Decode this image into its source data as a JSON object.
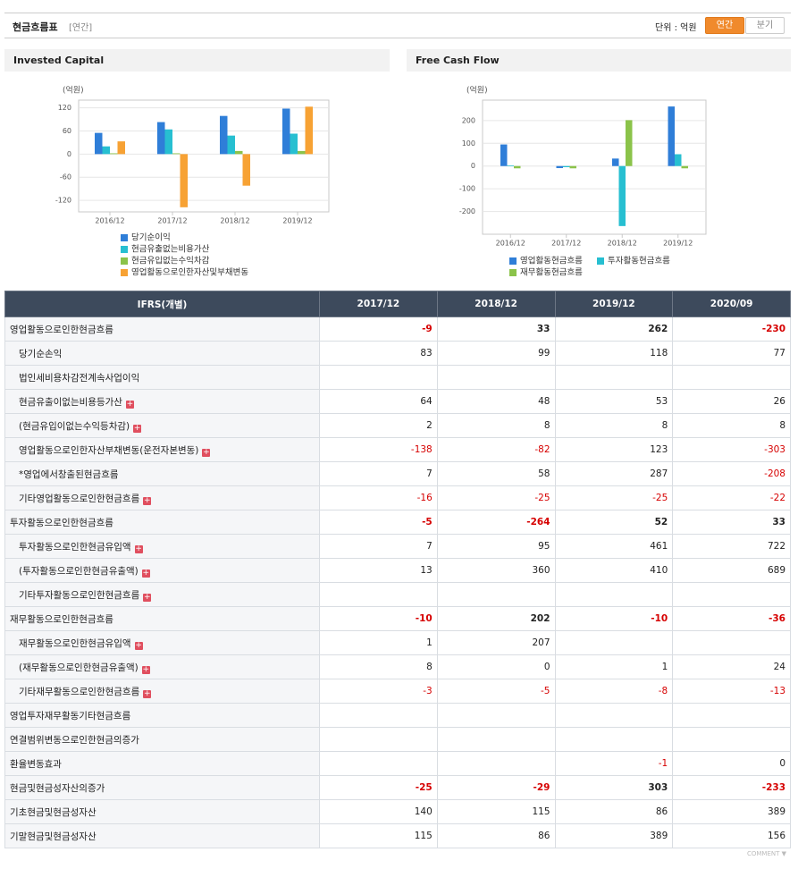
{
  "header": {
    "title": "현금흐름표",
    "period": "[연간]",
    "unit": "단위 : 억원",
    "tabs": [
      "연간",
      "분기"
    ],
    "active_tab": 0
  },
  "chart_data": [
    {
      "type": "bar",
      "title": "Invested Capital",
      "unit_label": "(억원)",
      "categories": [
        "2016/12",
        "2017/12",
        "2018/12",
        "2019/12"
      ],
      "series": [
        {
          "name": "당기순이익",
          "color": "#2f7ed8",
          "values": [
            55,
            83,
            99,
            118
          ]
        },
        {
          "name": "현금유출없는비용가산",
          "color": "#27bfd1",
          "values": [
            20,
            64,
            48,
            53
          ]
        },
        {
          "name": "현금유입없는수익차감",
          "color": "#8bc34a",
          "values": [
            2,
            2,
            8,
            8
          ]
        },
        {
          "name": "영업활동으로인한자산및부채변동",
          "color": "#f7a234",
          "values": [
            33,
            -138,
            -82,
            123
          ]
        }
      ],
      "ylim": [
        -150,
        140
      ],
      "yticks": [
        120,
        60,
        0,
        -60,
        -120
      ],
      "grid": true
    },
    {
      "type": "bar",
      "title": "Free Cash Flow",
      "unit_label": "(억원)",
      "categories": [
        "2016/12",
        "2017/12",
        "2018/12",
        "2019/12"
      ],
      "series": [
        {
          "name": "영업활동현금흐름",
          "color": "#2f7ed8",
          "values": [
            95,
            -9,
            33,
            262
          ]
        },
        {
          "name": "투자활동현금흐름",
          "color": "#27bfd1",
          "values": [
            3,
            -5,
            -264,
            52
          ]
        },
        {
          "name": "재무활동현금흐름",
          "color": "#8bc34a",
          "values": [
            -10,
            -10,
            202,
            -10
          ]
        }
      ],
      "ylim": [
        -300,
        290
      ],
      "yticks": [
        200,
        100,
        0,
        -100,
        -200
      ],
      "grid": true
    }
  ],
  "table": {
    "columns": [
      "IFRS(개별)",
      "2017/12",
      "2018/12",
      "2019/12",
      "2020/09"
    ],
    "rows": [
      {
        "label": "영업활동으로인한현금흐름",
        "values": [
          -9,
          33,
          262,
          -230
        ],
        "emphasis": true
      },
      {
        "label": "당기순손익",
        "values": [
          83,
          99,
          118,
          77
        ],
        "indent": true
      },
      {
        "label": "법인세비용차감전계속사업이익",
        "values": [
          null,
          null,
          null,
          null
        ],
        "indent": true
      },
      {
        "label": "현금유출이없는비용등가산",
        "values": [
          64,
          48,
          53,
          26
        ],
        "indent": true,
        "expand": true
      },
      {
        "label": "(현금유입이없는수익등차감)",
        "values": [
          2,
          8,
          8,
          8
        ],
        "indent": true,
        "expand": true
      },
      {
        "label": "영업활동으로인한자산부채변동(운전자본변동)",
        "values": [
          -138,
          -82,
          123,
          -303
        ],
        "indent": true,
        "expand": true
      },
      {
        "label": "*영업에서창출된현금흐름",
        "values": [
          7,
          58,
          287,
          -208
        ],
        "indent": true
      },
      {
        "label": "기타영업활동으로인한현금흐름",
        "values": [
          -16,
          -25,
          -25,
          -22
        ],
        "indent": true,
        "expand": true
      },
      {
        "label": "투자활동으로인한현금흐름",
        "values": [
          -5,
          -264,
          52,
          33
        ],
        "emphasis": true
      },
      {
        "label": "투자활동으로인한현금유입액",
        "values": [
          7,
          95,
          461,
          722
        ],
        "indent": true,
        "expand": true
      },
      {
        "label": "(투자활동으로인한현금유출액)",
        "values": [
          13,
          360,
          410,
          689
        ],
        "indent": true,
        "expand": true
      },
      {
        "label": "기타투자활동으로인한현금흐름",
        "values": [
          null,
          null,
          null,
          null
        ],
        "indent": true,
        "expand": true
      },
      {
        "label": "재무활동으로인한현금흐름",
        "values": [
          -10,
          202,
          -10,
          -36
        ],
        "emphasis": true
      },
      {
        "label": "재무활동으로인한현금유입액",
        "values": [
          1,
          207,
          null,
          null
        ],
        "indent": true,
        "expand": true
      },
      {
        "label": "(재무활동으로인한현금유출액)",
        "values": [
          8,
          0,
          1,
          24
        ],
        "indent": true,
        "expand": true
      },
      {
        "label": "기타재무활동으로인한현금흐름",
        "values": [
          -3,
          -5,
          -8,
          -13
        ],
        "indent": true,
        "expand": true
      },
      {
        "label": "영업투자재무활동기타현금흐름",
        "values": [
          null,
          null,
          null,
          null
        ]
      },
      {
        "label": "연결범위변동으로인한현금의증가",
        "values": [
          null,
          null,
          null,
          null
        ]
      },
      {
        "label": "환율변동효과",
        "values": [
          null,
          null,
          -1,
          0
        ]
      },
      {
        "label": "현금및현금성자산의증가",
        "values": [
          -25,
          -29,
          303,
          -233
        ],
        "emphasis": true
      },
      {
        "label": "기초현금및현금성자산",
        "values": [
          140,
          115,
          86,
          389
        ]
      },
      {
        "label": "기말현금및현금성자산",
        "values": [
          115,
          86,
          389,
          156
        ]
      }
    ]
  },
  "comment": "COMMENT ▼"
}
